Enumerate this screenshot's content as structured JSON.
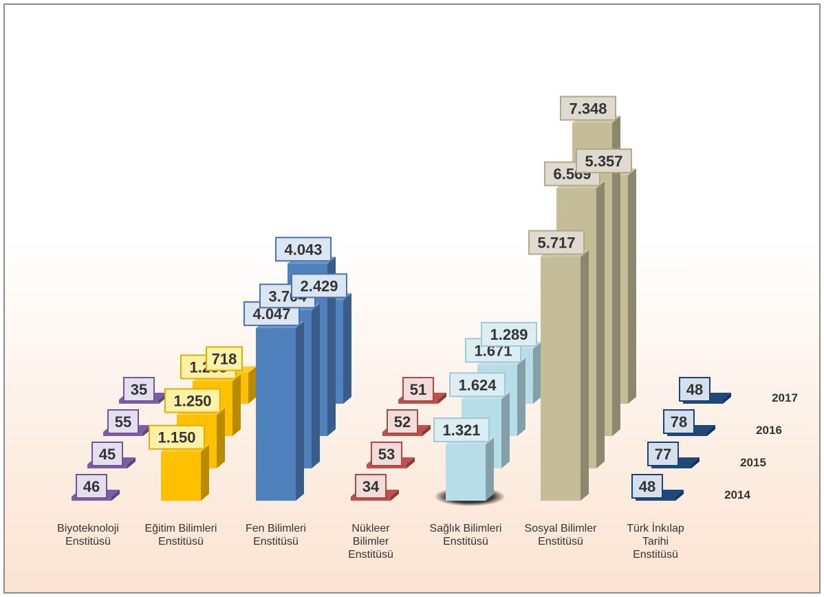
{
  "chart_data": {
    "type": "bar",
    "view": "3d-stacked-depth",
    "categories": [
      "Biyoteknoloji\nEnstitüsü",
      "Eğitim Bilimleri\nEnstitüsü",
      "Fen Bilimleri\nEnstitüsü",
      "Nükleer\nBilimler\nEnstitüsü",
      "Sağlık Bilimleri\nEnstitüsü",
      "Sosyal Bilimler\nEnstitüsü",
      "Türk İnkılap\nTarihi\nEnstitüsü"
    ],
    "series": [
      {
        "name": "2014",
        "values": [
          46,
          1150,
          4047,
          34,
          1321,
          5717,
          48
        ],
        "labels": [
          "46",
          "1.150",
          "4.047",
          "34",
          "1.321",
          "5.717",
          "48"
        ]
      },
      {
        "name": "2015",
        "values": [
          45,
          1250,
          3704,
          53,
          1624,
          6569,
          77
        ],
        "labels": [
          "45",
          "1.250",
          "3.704",
          "53",
          "1.624",
          "6.569",
          "77"
        ]
      },
      {
        "name": "2016",
        "values": [
          55,
          1283,
          4043,
          52,
          1671,
          7348,
          78
        ],
        "labels": [
          "55",
          "1.283",
          "4.043",
          "52",
          "1.671",
          "7.348",
          "78"
        ]
      },
      {
        "name": "2017",
        "values": [
          35,
          718,
          2429,
          51,
          1289,
          5357,
          48
        ],
        "labels": [
          "35",
          "718",
          "2.429",
          "51",
          "1.289",
          "5.357",
          "48"
        ]
      }
    ],
    "category_colors": [
      "#7b5ea7",
      "#ffc000",
      "#4f81bd",
      "#c0504d",
      "#b7dde8",
      "#c4bd97",
      "#1f497d"
    ],
    "label_fills": [
      "#e4dff0",
      "#fff2a8",
      "#dce6f2",
      "#f2dcdb",
      "#dbeef4",
      "#dedad0",
      "#d5dfee"
    ],
    "background_top": "#ffffff",
    "background_bottom": "#fbe3d1",
    "legend": "right, per depth row",
    "grid": false,
    "title": "",
    "xlabel": "",
    "ylabel": ""
  }
}
